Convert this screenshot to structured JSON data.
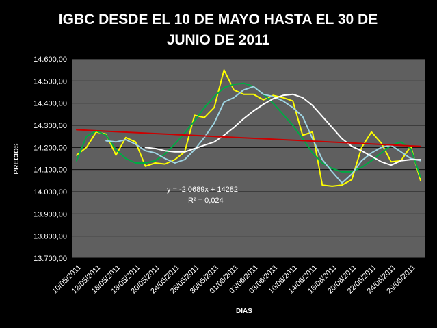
{
  "chart_data": {
    "type": "line",
    "title": "IGBC DESDE EL 10 DE MAYO  HASTA EL 30 DE JUNIO DE 2011",
    "title_lines": [
      "IGBC DESDE EL 10 DE MAYO  HASTA EL 30 DE",
      "JUNIO DE 2011"
    ],
    "xlabel": "DIAS",
    "ylabel": "PRECIOS",
    "ylim": [
      13700,
      14600
    ],
    "y_ticks": [
      13700,
      13800,
      13900,
      14000,
      14100,
      14200,
      14300,
      14400,
      14500,
      14600
    ],
    "y_tick_labels": [
      "13.700,00",
      "13.800,00",
      "13.900,00",
      "14.000,00",
      "14.100,00",
      "14.200,00",
      "14.300,00",
      "14.400,00",
      "14.500,00",
      "14.600,00"
    ],
    "x_tick_labels": [
      "10/05/2011",
      "12/05/2011",
      "16/05/2011",
      "18/05/2011",
      "20/05/2011",
      "24/05/2011",
      "26/05/2011",
      "30/05/2011",
      "01/06/2011",
      "03/06/2011",
      "08/06/2011",
      "10/06/2011",
      "14/06/2011",
      "16/06/2011",
      "20/06/2011",
      "22/06/2011",
      "24/06/2011",
      "29/06/2011"
    ],
    "grid": true,
    "plot_background": "#5f5f5f",
    "background": "#000000",
    "series": [
      {
        "color": "#ffff00",
        "values": [
          14165,
          14200,
          14270,
          14260,
          14165,
          14245,
          14225,
          14115,
          14130,
          14125,
          14145,
          14180,
          14345,
          14335,
          14380,
          14550,
          14460,
          14440,
          14440,
          14415,
          14435,
          14425,
          14410,
          14255,
          14270,
          14030,
          14025,
          14030,
          14055,
          14200,
          14270,
          14220,
          14135,
          14140,
          14205,
          14050
        ]
      },
      {
        "color": "#00aa44",
        "values": [
          14140,
          14250,
          14275,
          14255,
          14190,
          14150,
          14130,
          14130,
          14140,
          14170,
          14215,
          14265,
          14320,
          14380,
          14430,
          14470,
          14485,
          14490,
          14475,
          14440,
          14400,
          14350,
          14300,
          14240,
          14175,
          14130,
          14105,
          14090,
          14090,
          14110,
          14140,
          14175,
          14210,
          14225,
          14195,
          14065
        ]
      },
      {
        "color": "#9fd5e3",
        "values": [
          null,
          null,
          null,
          14230,
          14225,
          14235,
          14215,
          14185,
          14175,
          14150,
          14130,
          14145,
          14190,
          14245,
          14310,
          14405,
          14425,
          14460,
          14475,
          14440,
          14430,
          14410,
          14380,
          14340,
          14240,
          14145,
          14090,
          14040,
          14080,
          14140,
          14175,
          14200,
          14210,
          14180,
          14150,
          14140
        ]
      },
      {
        "color": "#ffffff",
        "values": [
          null,
          null,
          null,
          null,
          null,
          null,
          null,
          14200,
          14195,
          14185,
          14180,
          14180,
          14195,
          14210,
          14225,
          14255,
          14290,
          14330,
          14365,
          14395,
          14420,
          14435,
          14440,
          14425,
          14390,
          14340,
          14290,
          14240,
          14205,
          14185,
          14160,
          14135,
          14120,
          14140,
          14145,
          14145
        ]
      },
      {
        "color": "#cc0000",
        "type": "trendline",
        "values": [
          14280,
          14205
        ]
      }
    ],
    "annotations": [
      "y = -2,0689x + 14282",
      "R² = 0,024"
    ]
  }
}
